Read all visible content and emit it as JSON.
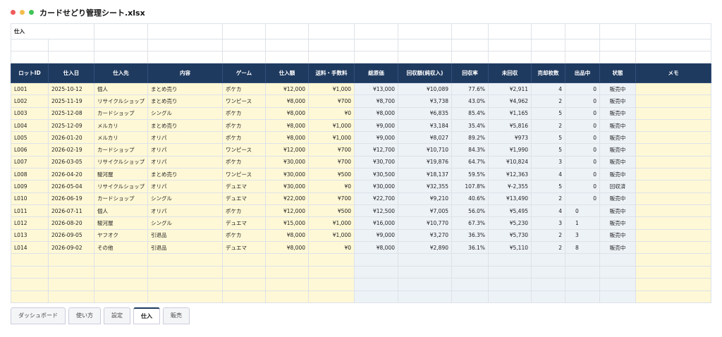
{
  "window": {
    "title": "カードせどり管理シート.xlsx"
  },
  "sheet": {
    "title": "仕入",
    "headers": [
      "ロットID",
      "仕入日",
      "仕入先",
      "内容",
      "ゲーム",
      "仕入額",
      "送料・手数料",
      "総原価",
      "回収額(純収入)",
      "回収率",
      "未回収",
      "売却枚数",
      "出品中",
      "状態",
      "メモ"
    ],
    "rows": [
      [
        "L001",
        "2025-10-12",
        "個人",
        "まとめ売り",
        "ポケカ",
        "¥12,000",
        "¥1,000",
        "¥13,000",
        "¥10,089",
        "77.6%",
        "¥2,911",
        "4",
        "0",
        "販売中"
      ],
      [
        "L002",
        "2025-11-19",
        "リサイクルショップ",
        "まとめ売り",
        "ワンピース",
        "¥8,000",
        "¥700",
        "¥8,700",
        "¥3,738",
        "43.0%",
        "¥4,962",
        "2",
        "0",
        "販売中"
      ],
      [
        "L003",
        "2025-12-08",
        "カードショップ",
        "シングル",
        "ポケカ",
        "¥8,000",
        "¥0",
        "¥8,000",
        "¥6,835",
        "85.4%",
        "¥1,165",
        "5",
        "0",
        "販売中"
      ],
      [
        "L004",
        "2025-12-09",
        "メルカリ",
        "まとめ売り",
        "ポケカ",
        "¥8,000",
        "¥1,000",
        "¥9,000",
        "¥3,184",
        "35.4%",
        "¥5,816",
        "2",
        "0",
        "販売中"
      ],
      [
        "L005",
        "2026-01-20",
        "メルカリ",
        "オリパ",
        "ポケカ",
        "¥8,000",
        "¥1,000",
        "¥9,000",
        "¥8,027",
        "89.2%",
        "¥973",
        "5",
        "0",
        "販売中"
      ],
      [
        "L006",
        "2026-02-19",
        "カードショップ",
        "オリパ",
        "ワンピース",
        "¥12,000",
        "¥700",
        "¥12,700",
        "¥10,710",
        "84.3%",
        "¥1,990",
        "5",
        "0",
        "販売中"
      ],
      [
        "L007",
        "2026-03-05",
        "リサイクルショップ",
        "オリパ",
        "ポケカ",
        "¥30,000",
        "¥700",
        "¥30,700",
        "¥19,876",
        "64.7%",
        "¥10,824",
        "3",
        "0",
        "販売中"
      ],
      [
        "L008",
        "2026-04-20",
        "駿河屋",
        "まとめ売り",
        "ワンピース",
        "¥30,000",
        "¥500",
        "¥30,500",
        "¥18,137",
        "59.5%",
        "¥12,363",
        "4",
        "0",
        "販売中"
      ],
      [
        "L009",
        "2026-05-04",
        "リサイクルショップ",
        "オリパ",
        "デュエマ",
        "¥30,000",
        "¥0",
        "¥30,000",
        "¥32,355",
        "107.8%",
        "¥-2,355",
        "5",
        "0",
        "回収済"
      ],
      [
        "L010",
        "2026-06-19",
        "カードショップ",
        "シングル",
        "デュエマ",
        "¥22,000",
        "¥700",
        "¥22,700",
        "¥9,210",
        "40.6%",
        "¥13,490",
        "2",
        "0",
        "販売中"
      ],
      [
        "L011",
        "2026-07-11",
        "個人",
        "オリパ",
        "ポケカ",
        "¥12,000",
        "¥500",
        "¥12,500",
        "¥7,005",
        "56.0%",
        "¥5,495",
        "4",
        "0",
        "販売中"
      ],
      [
        "L012",
        "2026-08-20",
        "駿河屋",
        "シングル",
        "デュエマ",
        "¥15,000",
        "¥1,000",
        "¥16,000",
        "¥10,770",
        "67.3%",
        "¥5,230",
        "3",
        "1",
        "販売中"
      ],
      [
        "L013",
        "2026-09-05",
        "ヤフオク",
        "引退品",
        "ポケカ",
        "¥8,000",
        "¥1,000",
        "¥9,000",
        "¥3,270",
        "36.3%",
        "¥5,730",
        "2",
        "3",
        "販売中"
      ],
      [
        "L014",
        "2026-09-02",
        "その他",
        "引退品",
        "デュエマ",
        "¥8,000",
        "¥0",
        "¥8,000",
        "¥2,890",
        "36.1%",
        "¥5,110",
        "2",
        "8",
        "販売中"
      ]
    ]
  },
  "tabs": [
    "ダッシュボード",
    "使い方",
    "設定",
    "仕入",
    "販売"
  ],
  "active_tab": 3
}
